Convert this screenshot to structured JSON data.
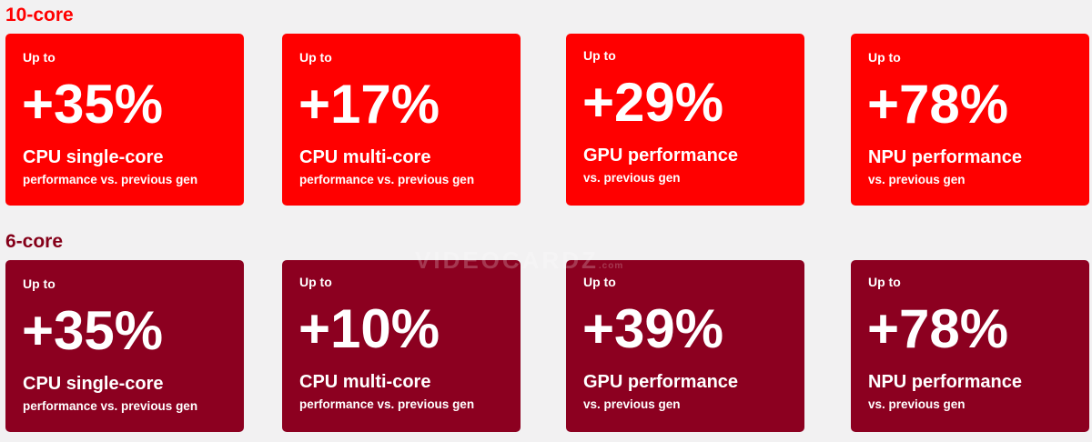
{
  "colors": {
    "label_10core": "#ff0000",
    "label_6core": "#850019",
    "card_10core": "#ff0000",
    "card_6core": "#8c0020",
    "background": "#f2f1f2"
  },
  "sections": [
    {
      "label": "10-core",
      "cards": [
        {
          "upto": "Up to",
          "value": "+35%",
          "title": "CPU single-core",
          "subtitle": "performance vs. previous gen"
        },
        {
          "upto": "Up to",
          "value": "+17%",
          "title": "CPU multi-core",
          "subtitle": "performance vs. previous gen"
        },
        {
          "upto": "Up to",
          "value": "+29%",
          "title": "GPU performance",
          "subtitle": "vs. previous gen"
        },
        {
          "upto": "Up to",
          "value": "+78%",
          "title": "NPU performance",
          "subtitle": "vs. previous gen"
        }
      ]
    },
    {
      "label": "6-core",
      "cards": [
        {
          "upto": "Up to",
          "value": "+35%",
          "title": "CPU single-core",
          "subtitle": "performance vs. previous gen"
        },
        {
          "upto": "Up to",
          "value": "+10%",
          "title": "CPU multi-core",
          "subtitle": "performance vs. previous gen"
        },
        {
          "upto": "Up to",
          "value": "+39%",
          "title": "GPU performance",
          "subtitle": "vs. previous gen"
        },
        {
          "upto": "Up to",
          "value": "+78%",
          "title": "NPU performance",
          "subtitle": "vs. previous gen"
        }
      ]
    }
  ],
  "watermark": {
    "text": "VIDEOCARDZ",
    "domain": ".com"
  }
}
